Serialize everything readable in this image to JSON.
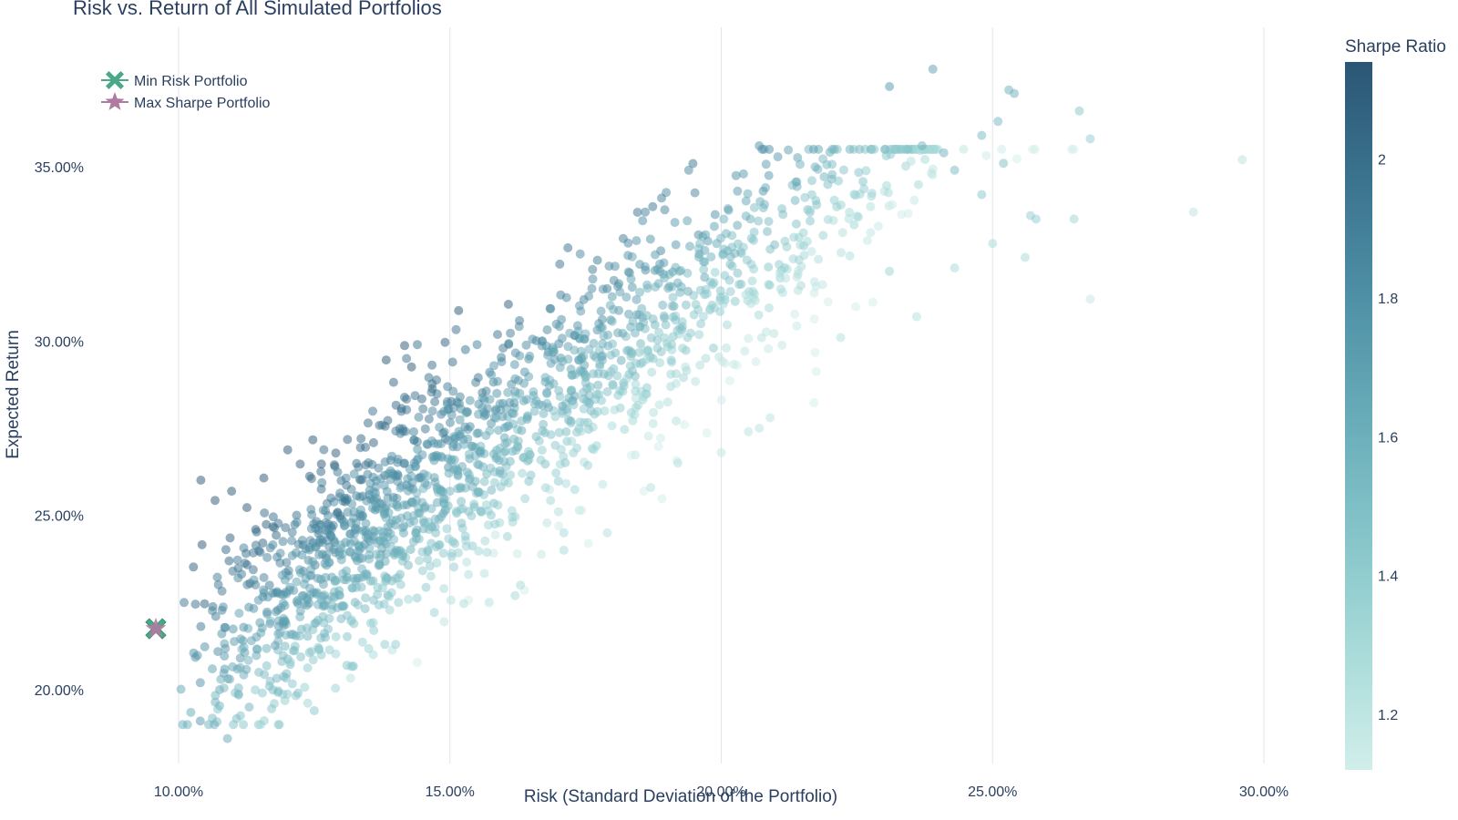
{
  "chart_data": {
    "type": "scatter",
    "title": "Risk vs. Return of All Simulated Portfolios",
    "xlabel": "Risk (Standard Deviation of the Portfolio)",
    "ylabel": "Expected Return",
    "xlim": [
      0.084,
      0.316
    ],
    "ylim": [
      0.178,
      0.384
    ],
    "x_ticks": [
      0.1,
      0.15,
      0.2,
      0.25,
      0.3
    ],
    "x_tick_labels": [
      "10.00%",
      "15.00%",
      "20.00%",
      "25.00%",
      "30.00%"
    ],
    "y_ticks": [
      0.2,
      0.25,
      0.3,
      0.35
    ],
    "y_tick_labels": [
      "20.00%",
      "25.00%",
      "30.00%",
      "35.00%"
    ],
    "grid": "vertical-only",
    "colorbar": {
      "title": "Sharpe Ratio",
      "range": [
        1.12,
        2.14
      ],
      "ticks": [
        1.2,
        1.4,
        1.6,
        1.8,
        2
      ],
      "tick_labels": [
        "1.2",
        "1.4",
        "1.6",
        "1.8",
        "2"
      ],
      "colorscale": [
        "#d1eeea",
        "#a8dbd9",
        "#85c4c9",
        "#68abb8",
        "#4f90a6",
        "#3b738f",
        "#2a5674"
      ]
    },
    "legend": {
      "placement": "top-left",
      "entries": [
        {
          "name": "Min Risk Portfolio",
          "symbol": "x",
          "color": "#4aa888"
        },
        {
          "name": "Max Sharpe Portfolio",
          "symbol": "star",
          "color": "#b07aa1"
        }
      ]
    },
    "highlights": [
      {
        "name": "Min Risk Portfolio",
        "x": 0.0958,
        "y": 0.2175,
        "symbol": "x",
        "color": "#4aa888"
      },
      {
        "name": "Max Sharpe Portfolio",
        "x": 0.0958,
        "y": 0.2175,
        "symbol": "star",
        "color": "#b07aa1"
      }
    ],
    "simulation": {
      "description_points": "approx 1800 simulated portfolios; listed outliers and a regenerated dense cloud",
      "count": 1750,
      "outliers": [
        [
          0.101,
          0.225,
          1.95
        ],
        [
          0.104,
          0.202,
          1.8
        ],
        [
          0.104,
          0.191,
          1.75
        ],
        [
          0.109,
          0.186,
          1.65
        ],
        [
          0.11,
          0.234,
          1.95
        ],
        [
          0.113,
          0.195,
          1.6
        ],
        [
          0.122,
          0.199,
          1.5
        ],
        [
          0.125,
          0.194,
          1.45
        ],
        [
          0.131,
          0.207,
          1.45
        ],
        [
          0.14,
          0.213,
          1.4
        ],
        [
          0.138,
          0.213,
          1.4
        ],
        [
          0.144,
          0.299,
          2.0
        ],
        [
          0.142,
          0.295,
          2.0
        ],
        [
          0.155,
          0.299,
          1.9
        ],
        [
          0.162,
          0.227,
          1.3
        ],
        [
          0.163,
          0.23,
          1.3
        ],
        [
          0.171,
          0.24,
          1.3
        ],
        [
          0.171,
          0.245,
          1.3
        ],
        [
          0.179,
          0.245,
          1.25
        ],
        [
          0.187,
          0.258,
          1.25
        ],
        [
          0.192,
          0.265,
          1.25
        ],
        [
          0.2,
          0.268,
          1.2
        ],
        [
          0.205,
          0.274,
          1.22
        ],
        [
          0.207,
          0.275,
          1.22
        ],
        [
          0.209,
          0.278,
          1.22
        ],
        [
          0.174,
          0.325,
          1.85
        ],
        [
          0.194,
          0.349,
          1.85
        ],
        [
          0.203,
          0.343,
          1.75
        ],
        [
          0.207,
          0.356,
          1.8
        ],
        [
          0.189,
          0.341,
          1.9
        ],
        [
          0.186,
          0.337,
          1.9
        ],
        [
          0.231,
          0.373,
          1.75
        ],
        [
          0.239,
          0.378,
          1.7
        ],
        [
          0.253,
          0.372,
          1.6
        ],
        [
          0.254,
          0.371,
          1.6
        ],
        [
          0.266,
          0.366,
          1.45
        ],
        [
          0.268,
          0.358,
          1.4
        ],
        [
          0.251,
          0.363,
          1.55
        ],
        [
          0.252,
          0.351,
          1.5
        ],
        [
          0.248,
          0.359,
          1.55
        ],
        [
          0.237,
          0.356,
          1.6
        ],
        [
          0.241,
          0.354,
          1.6
        ],
        [
          0.243,
          0.349,
          1.55
        ],
        [
          0.248,
          0.342,
          1.45
        ],
        [
          0.257,
          0.336,
          1.4
        ],
        [
          0.258,
          0.335,
          1.4
        ],
        [
          0.265,
          0.335,
          1.35
        ],
        [
          0.256,
          0.324,
          1.3
        ],
        [
          0.25,
          0.328,
          1.3
        ],
        [
          0.268,
          0.312,
          1.18
        ],
        [
          0.287,
          0.337,
          1.22
        ],
        [
          0.296,
          0.352,
          1.22
        ],
        [
          0.236,
          0.307,
          1.25
        ],
        [
          0.243,
          0.321,
          1.3
        ],
        [
          0.231,
          0.32,
          1.35
        ],
        [
          0.222,
          0.301,
          1.25
        ]
      ]
    }
  }
}
